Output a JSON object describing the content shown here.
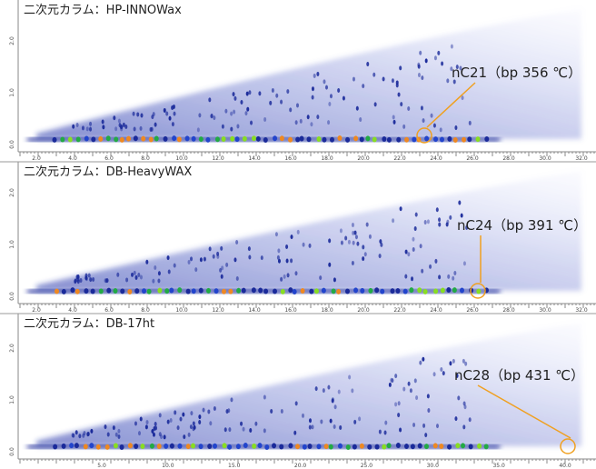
{
  "panels": [
    {
      "label": "二次元カラム：HP-INNOWax",
      "annotation": "nC21（bp 356 ℃）",
      "x_ticks": [
        "2.0",
        "4.0",
        "6.0",
        "8.0",
        "10.0",
        "12.0",
        "14.0",
        "16.0",
        "18.0",
        "20.0",
        "22.0",
        "24.0",
        "26.0",
        "28.0",
        "30.0",
        "32.0"
      ],
      "y_ticks": [
        "0.0",
        "1.0",
        "2.0"
      ]
    },
    {
      "label": "二次元カラム：DB-HeavyWAX",
      "annotation": "nC24（bp 391 ℃）",
      "x_ticks": [
        "2.0",
        "4.0",
        "6.0",
        "8.0",
        "10.0",
        "12.0",
        "14.0",
        "16.0",
        "18.0",
        "20.0",
        "22.0",
        "24.0",
        "26.0",
        "28.0",
        "30.0",
        "32.0"
      ],
      "y_ticks": [
        "0.0",
        "1.0",
        "2.0"
      ]
    },
    {
      "label": "二次元カラム：DB-17ht",
      "annotation": "nC28（bp 431 ℃）",
      "x_ticks": [
        "5.0",
        "10.0",
        "15.0",
        "20.0",
        "25.0",
        "30.0",
        "35.0",
        "40.0"
      ],
      "y_ticks": [
        "0.0",
        "1.0",
        "2.0"
      ]
    }
  ]
}
